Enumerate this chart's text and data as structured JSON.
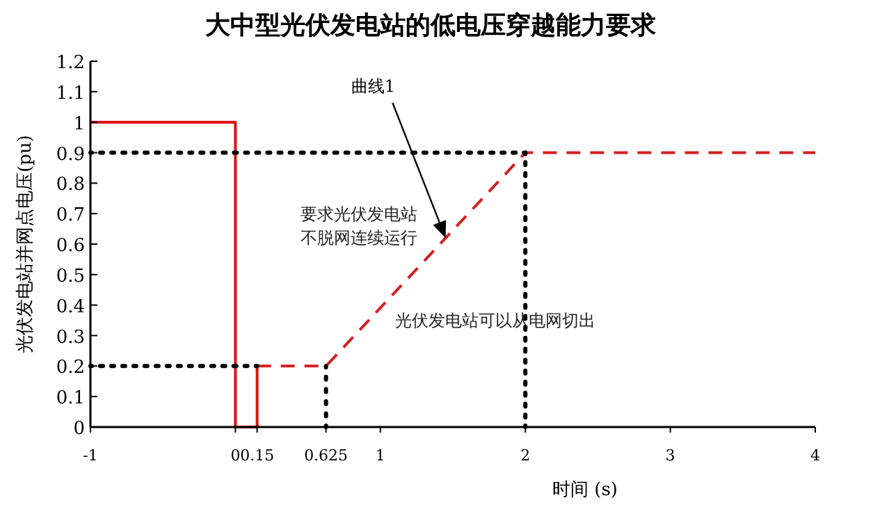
{
  "chart_data": {
    "type": "line",
    "title": "大中型光伏发电站的低电压穿越能力要求",
    "xlabel": "时间 (s)",
    "ylabel": "光伏发电站并网点电压(pu)",
    "xlim": [
      -1,
      4
    ],
    "ylim": [
      0,
      1.2
    ],
    "xticks": [
      -1,
      0,
      0.15,
      0.625,
      1,
      2,
      3,
      4
    ],
    "yticks": [
      0,
      0.1,
      0.2,
      0.3,
      0.4,
      0.5,
      0.6,
      0.7,
      0.8,
      0.9,
      1,
      1.1,
      1.2
    ],
    "marker": "none",
    "series": [
      {
        "color": "#e01010",
        "line_style": "solid",
        "x": [
          -1,
          0,
          0,
          0.15,
          0.15
        ],
        "values": [
          1,
          1,
          0,
          0,
          0.2
        ]
      },
      {
        "color": "#d42020",
        "line_style": "dashed",
        "x": [
          0.15,
          0.625,
          2,
          4
        ],
        "values": [
          0.2,
          0.2,
          0.9,
          0.9
        ]
      },
      {
        "color": "#000000",
        "line_style": "dotted",
        "x": [
          -1,
          2
        ],
        "values": [
          0.9,
          0.9
        ]
      },
      {
        "color": "#000000",
        "line_style": "dotted",
        "x": [
          -1,
          0.15
        ],
        "values": [
          0.2,
          0.2
        ]
      },
      {
        "color": "#000000",
        "line_style": "dotted",
        "x": [
          0.625,
          0.625
        ],
        "values": [
          0,
          0.2
        ]
      },
      {
        "color": "#000000",
        "line_style": "dotted",
        "x": [
          2,
          2
        ],
        "values": [
          0,
          0.9
        ]
      }
    ],
    "annotations": [
      "曲线1",
      "要求光伏发电站不脱网连续运行",
      "光伏发电站可以从电网切出"
    ]
  }
}
